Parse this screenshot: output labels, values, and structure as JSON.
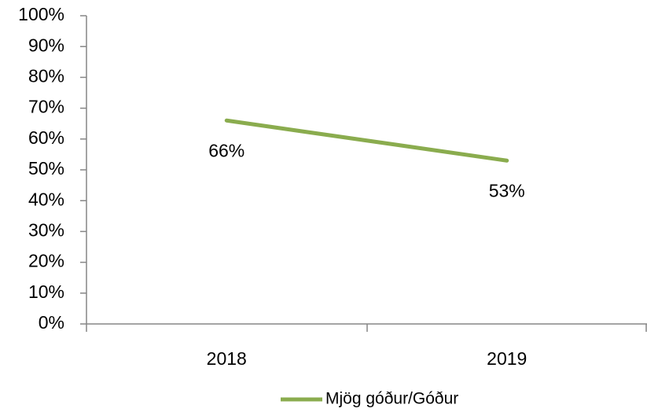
{
  "chart_data": {
    "type": "line",
    "categories": [
      "2018",
      "2019"
    ],
    "series": [
      {
        "name": "Mjög góður/Góður",
        "color": "#8aac4e",
        "values": [
          66,
          53
        ],
        "value_labels": [
          "66%",
          "53%"
        ]
      }
    ],
    "ylim": [
      0,
      100
    ],
    "yticks": [
      {
        "value": 0,
        "label": "0%"
      },
      {
        "value": 10,
        "label": "10%"
      },
      {
        "value": 20,
        "label": "20%"
      },
      {
        "value": 30,
        "label": "30%"
      },
      {
        "value": 40,
        "label": "40%"
      },
      {
        "value": 50,
        "label": "50%"
      },
      {
        "value": 60,
        "label": "60%"
      },
      {
        "value": 70,
        "label": "70%"
      },
      {
        "value": 80,
        "label": "80%"
      },
      {
        "value": 90,
        "label": "90%"
      },
      {
        "value": 100,
        "label": "100%"
      }
    ],
    "legend": "bottom"
  }
}
